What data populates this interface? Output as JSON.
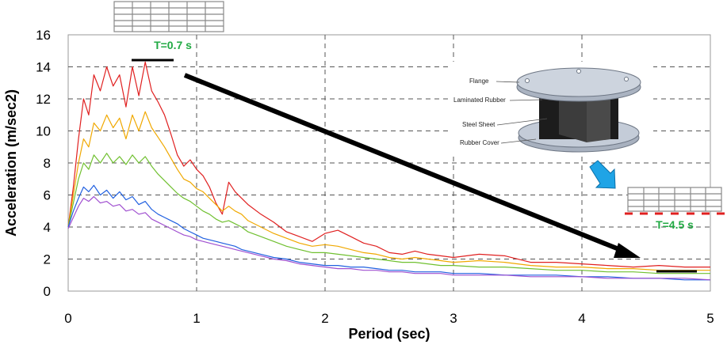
{
  "chart_data": {
    "type": "line",
    "xlabel": "Period (sec)",
    "ylabel": "Acceleration (m/sec2)",
    "xlim": [
      0,
      5
    ],
    "ylim": [
      0,
      16
    ],
    "x_ticks": [
      "0",
      "1",
      "2",
      "3",
      "4",
      "5"
    ],
    "y_ticks": [
      "0",
      "2",
      "4",
      "6",
      "8",
      "10",
      "12",
      "14",
      "16"
    ],
    "grid": "dashed",
    "legend": "none",
    "series": [
      {
        "color": "#e02020",
        "x": [
          0.0,
          0.04,
          0.08,
          0.12,
          0.16,
          0.2,
          0.25,
          0.3,
          0.35,
          0.4,
          0.45,
          0.5,
          0.55,
          0.6,
          0.65,
          0.7,
          0.75,
          0.8,
          0.85,
          0.9,
          0.95,
          1.0,
          1.05,
          1.1,
          1.15,
          1.2,
          1.25,
          1.3,
          1.35,
          1.4,
          1.5,
          1.6,
          1.7,
          1.8,
          1.9,
          2.0,
          2.1,
          2.2,
          2.3,
          2.4,
          2.5,
          2.6,
          2.7,
          2.8,
          2.9,
          3.0,
          3.2,
          3.4,
          3.6,
          3.8,
          4.0,
          4.2,
          4.4,
          4.6,
          4.8,
          5.0
        ],
        "y": [
          4.0,
          6.5,
          9.5,
          12.0,
          11.0,
          13.5,
          12.5,
          14.0,
          12.8,
          13.5,
          11.5,
          14.0,
          12.2,
          14.3,
          12.5,
          11.8,
          11.0,
          9.8,
          8.5,
          7.8,
          8.2,
          7.6,
          7.2,
          6.5,
          5.5,
          4.8,
          6.8,
          6.2,
          5.8,
          5.4,
          4.8,
          4.3,
          3.7,
          3.4,
          3.1,
          3.6,
          3.8,
          3.4,
          3.0,
          2.8,
          2.4,
          2.3,
          2.5,
          2.3,
          2.2,
          2.1,
          2.3,
          2.2,
          1.8,
          1.8,
          1.7,
          1.6,
          1.5,
          1.6,
          1.5,
          1.5
        ]
      },
      {
        "color": "#f0a800",
        "x": [
          0.0,
          0.04,
          0.08,
          0.12,
          0.16,
          0.2,
          0.25,
          0.3,
          0.35,
          0.4,
          0.45,
          0.5,
          0.55,
          0.6,
          0.65,
          0.7,
          0.75,
          0.8,
          0.85,
          0.9,
          0.95,
          1.0,
          1.05,
          1.1,
          1.15,
          1.2,
          1.25,
          1.3,
          1.35,
          1.4,
          1.5,
          1.6,
          1.7,
          1.8,
          1.9,
          2.0,
          2.1,
          2.2,
          2.3,
          2.4,
          2.5,
          2.6,
          2.7,
          2.8,
          2.9,
          3.0,
          3.2,
          3.4,
          3.6,
          3.8,
          4.0,
          4.2,
          4.4,
          4.6,
          4.8,
          5.0
        ],
        "y": [
          4.0,
          6.0,
          8.0,
          9.5,
          9.0,
          10.5,
          10.0,
          11.0,
          10.2,
          10.8,
          9.5,
          11.0,
          10.0,
          11.2,
          10.2,
          9.6,
          9.0,
          8.3,
          7.6,
          7.0,
          6.8,
          6.4,
          6.2,
          5.8,
          5.4,
          5.0,
          5.3,
          5.0,
          4.8,
          4.4,
          4.0,
          3.6,
          3.3,
          3.0,
          2.8,
          2.9,
          2.8,
          2.6,
          2.4,
          2.3,
          2.1,
          2.0,
          2.1,
          2.0,
          1.9,
          1.8,
          1.9,
          1.8,
          1.6,
          1.5,
          1.5,
          1.4,
          1.4,
          1.3,
          1.3,
          1.3
        ]
      },
      {
        "color": "#70c030",
        "x": [
          0.0,
          0.04,
          0.08,
          0.12,
          0.16,
          0.2,
          0.25,
          0.3,
          0.35,
          0.4,
          0.45,
          0.5,
          0.55,
          0.6,
          0.65,
          0.7,
          0.75,
          0.8,
          0.85,
          0.9,
          0.95,
          1.0,
          1.05,
          1.1,
          1.15,
          1.2,
          1.25,
          1.3,
          1.35,
          1.4,
          1.5,
          1.6,
          1.7,
          1.8,
          1.9,
          2.0,
          2.1,
          2.2,
          2.3,
          2.4,
          2.5,
          2.6,
          2.7,
          2.8,
          2.9,
          3.0,
          3.2,
          3.4,
          3.6,
          3.8,
          4.0,
          4.2,
          4.4,
          4.6,
          4.8,
          5.0
        ],
        "y": [
          4.0,
          5.5,
          7.0,
          8.0,
          7.6,
          8.5,
          8.0,
          8.6,
          8.0,
          8.4,
          7.9,
          8.5,
          8.0,
          8.4,
          7.8,
          7.3,
          6.9,
          6.5,
          6.1,
          5.8,
          5.6,
          5.3,
          5.0,
          4.8,
          4.5,
          4.3,
          4.4,
          4.2,
          4.0,
          3.7,
          3.4,
          3.1,
          2.8,
          2.6,
          2.4,
          2.4,
          2.3,
          2.2,
          2.1,
          2.0,
          1.9,
          1.8,
          1.8,
          1.7,
          1.6,
          1.6,
          1.5,
          1.5,
          1.4,
          1.3,
          1.3,
          1.2,
          1.2,
          1.1,
          1.1,
          1.1
        ]
      },
      {
        "color": "#2060e0",
        "x": [
          0.0,
          0.04,
          0.08,
          0.12,
          0.16,
          0.2,
          0.25,
          0.3,
          0.35,
          0.4,
          0.45,
          0.5,
          0.55,
          0.6,
          0.65,
          0.7,
          0.75,
          0.8,
          0.85,
          0.9,
          0.95,
          1.0,
          1.05,
          1.1,
          1.15,
          1.2,
          1.25,
          1.3,
          1.35,
          1.4,
          1.5,
          1.6,
          1.7,
          1.8,
          1.9,
          2.0,
          2.1,
          2.2,
          2.3,
          2.4,
          2.5,
          2.6,
          2.7,
          2.8,
          2.9,
          3.0,
          3.2,
          3.4,
          3.6,
          3.8,
          4.0,
          4.2,
          4.4,
          4.6,
          4.8,
          5.0
        ],
        "y": [
          4.0,
          5.0,
          5.8,
          6.5,
          6.2,
          6.6,
          6.0,
          6.3,
          5.8,
          6.2,
          5.7,
          5.9,
          5.4,
          5.6,
          5.1,
          4.8,
          4.6,
          4.4,
          4.2,
          3.9,
          3.7,
          3.5,
          3.3,
          3.2,
          3.1,
          3.0,
          2.9,
          2.8,
          2.6,
          2.5,
          2.3,
          2.1,
          2.0,
          1.8,
          1.7,
          1.6,
          1.6,
          1.5,
          1.5,
          1.4,
          1.3,
          1.3,
          1.2,
          1.2,
          1.2,
          1.1,
          1.1,
          1.0,
          1.0,
          1.0,
          0.9,
          0.9,
          0.8,
          0.8,
          0.7,
          0.7
        ]
      },
      {
        "color": "#a050d0",
        "x": [
          0.0,
          0.04,
          0.08,
          0.12,
          0.16,
          0.2,
          0.25,
          0.3,
          0.35,
          0.4,
          0.45,
          0.5,
          0.55,
          0.6,
          0.65,
          0.7,
          0.75,
          0.8,
          0.85,
          0.9,
          0.95,
          1.0,
          1.05,
          1.1,
          1.15,
          1.2,
          1.25,
          1.3,
          1.35,
          1.4,
          1.5,
          1.6,
          1.7,
          1.8,
          1.9,
          2.0,
          2.1,
          2.2,
          2.3,
          2.4,
          2.5,
          2.6,
          2.7,
          2.8,
          2.9,
          3.0,
          3.2,
          3.4,
          3.6,
          3.8,
          4.0,
          4.2,
          4.4,
          4.6,
          4.8,
          5.0
        ],
        "y": [
          3.9,
          4.6,
          5.3,
          5.8,
          5.6,
          5.9,
          5.5,
          5.6,
          5.3,
          5.4,
          5.0,
          5.1,
          4.8,
          4.9,
          4.5,
          4.3,
          4.1,
          3.9,
          3.7,
          3.5,
          3.4,
          3.2,
          3.1,
          3.0,
          2.9,
          2.8,
          2.7,
          2.6,
          2.5,
          2.4,
          2.2,
          2.0,
          1.9,
          1.7,
          1.6,
          1.5,
          1.4,
          1.4,
          1.3,
          1.3,
          1.2,
          1.2,
          1.1,
          1.1,
          1.1,
          1.0,
          1.0,
          1.0,
          0.9,
          0.9,
          0.9,
          0.8,
          0.8,
          0.8,
          0.8,
          0.7
        ]
      }
    ],
    "annotations": {
      "t1": {
        "text": "T=0.7 s",
        "color": "#22aa44"
      },
      "t2": {
        "text": "T=4.5 s",
        "color": "#22aa44"
      },
      "bearing_labels": [
        "Flange",
        "Laminated Rubber",
        "Steel Sheet",
        "Rubber Cover"
      ]
    }
  }
}
